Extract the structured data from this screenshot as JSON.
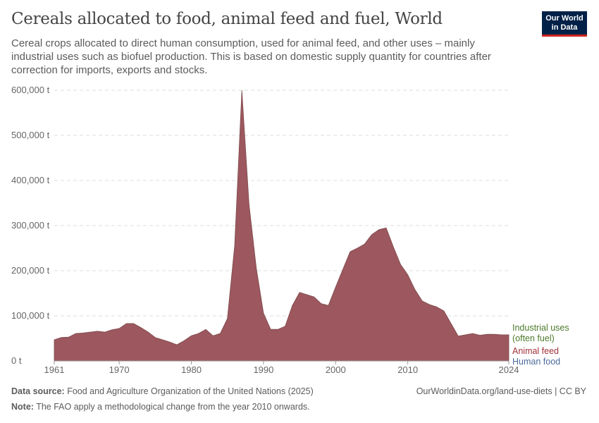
{
  "header": {
    "title": "Cereals allocated to food, animal feed and fuel, World",
    "subtitle": "Cereal crops allocated to direct human consumption, used for animal feed, and other uses – mainly industrial uses such as biofuel production. This is based on domestic supply quantity for countries after correction for imports, exports and stocks.",
    "logo_line1": "Our World",
    "logo_line2": "in Data"
  },
  "footer": {
    "source_label": "Data source:",
    "source": "Food and Agriculture Organization of the United Nations (2025)",
    "url": "OurWorldinData.org/land-use-diets | CC BY",
    "note_label": "Note:",
    "note": "The FAO apply a methodological change from the year 2010 onwards."
  },
  "chart_data": {
    "type": "area",
    "title": "Cereals allocated to food, animal feed and fuel, World",
    "xlabel": "",
    "ylabel": "",
    "xlim": [
      1961,
      2024
    ],
    "ylim": [
      0,
      600000
    ],
    "y_ticks": [
      0,
      100000,
      200000,
      300000,
      400000,
      500000,
      600000
    ],
    "y_tick_labels": [
      "0 t",
      "100,000 t",
      "200,000 t",
      "300,000 t",
      "400,000 t",
      "500,000 t",
      "600,000 t"
    ],
    "x_ticks": [
      1961,
      1970,
      1980,
      1990,
      2000,
      2010,
      2024
    ],
    "x_tick_labels": [
      "1961",
      "1970",
      "1980",
      "1990",
      "2000",
      "2010",
      "2024"
    ],
    "grid": true,
    "legend_placement": "right",
    "legend": [
      {
        "name": "Industrial uses",
        "name2": "(often fuel)",
        "color": "#4c7a2c"
      },
      {
        "name": "Animal feed",
        "color": "#a2323a"
      },
      {
        "name": "Human food",
        "color": "#4c6a9c"
      }
    ],
    "series": [
      {
        "name": "Animal feed",
        "color": "#9c585e",
        "x": [
          1961,
          1962,
          1963,
          1964,
          1965,
          1966,
          1967,
          1968,
          1969,
          1970,
          1971,
          1972,
          1973,
          1974,
          1975,
          1976,
          1977,
          1978,
          1979,
          1980,
          1981,
          1982,
          1983,
          1984,
          1985,
          1986,
          1987,
          1988,
          1989,
          1990,
          1991,
          1992,
          1993,
          1994,
          1995,
          1996,
          1997,
          1998,
          1999,
          2000,
          2001,
          2002,
          2003,
          2004,
          2005,
          2006,
          2007,
          2008,
          2009,
          2010,
          2011,
          2012,
          2013,
          2014,
          2015,
          2016,
          2017,
          2018,
          2019,
          2020,
          2021,
          2022,
          2023,
          2024
        ],
        "values": [
          47000,
          52000,
          53000,
          61000,
          62000,
          64000,
          66000,
          64000,
          69000,
          72000,
          83000,
          83000,
          74000,
          64000,
          52000,
          47000,
          42000,
          36000,
          45000,
          56000,
          61000,
          70000,
          56000,
          61000,
          94000,
          256000,
          600000,
          347000,
          206000,
          106000,
          70000,
          70000,
          77000,
          123000,
          152000,
          147000,
          142000,
          127000,
          123000,
          164000,
          203000,
          242000,
          250000,
          259000,
          280000,
          291000,
          295000,
          253000,
          214000,
          191000,
          158000,
          133000,
          125000,
          120000,
          111000,
          83000,
          55000,
          58000,
          61000,
          57000,
          59000,
          59000,
          58000,
          58000
        ]
      }
    ]
  }
}
